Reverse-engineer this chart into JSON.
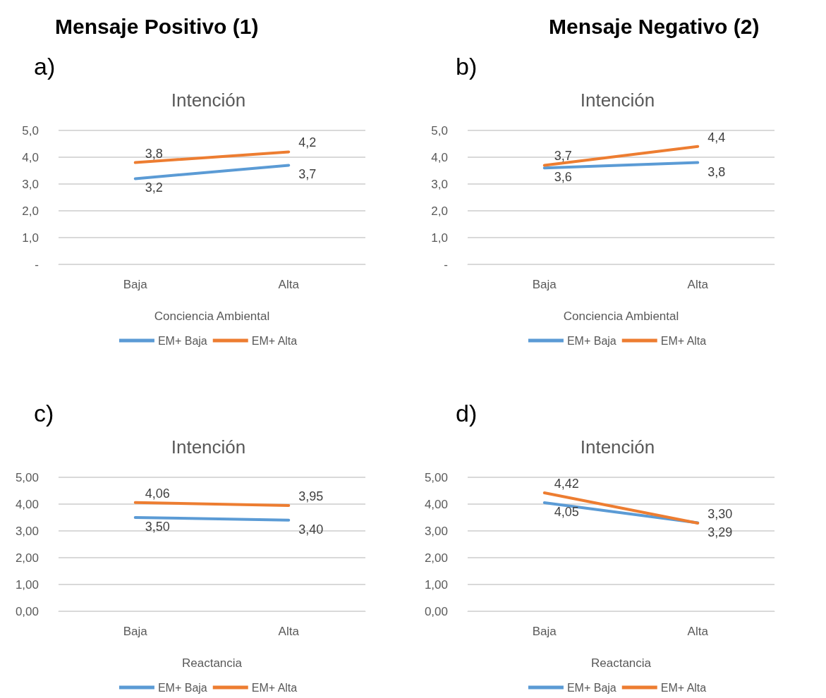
{
  "chart_data": [
    {
      "type": "line",
      "title": "Intención",
      "annotations": [
        "Mensaje Positivo (1)",
        "a)"
      ],
      "xlabel": "Conciencia Ambiental",
      "categories": [
        "Baja",
        "Alta"
      ],
      "ylim": [
        0,
        5
      ],
      "yticks": [
        {
          "value": 0,
          "label": "-"
        },
        {
          "value": 1,
          "label": "1,0"
        },
        {
          "value": 2,
          "label": "2,0"
        },
        {
          "value": 3,
          "label": "3,0"
        },
        {
          "value": 4,
          "label": "4,0"
        },
        {
          "value": 5,
          "label": "5,0"
        }
      ],
      "grid": "y",
      "legend": "bottom",
      "marker": "none",
      "line_style": "solid",
      "series": [
        {
          "name": "EM+ Baja",
          "color": "#5b9bd5",
          "values": [
            3.2,
            3.7
          ],
          "value_labels": [
            "3,2",
            "3,7"
          ]
        },
        {
          "name": "EM+ Alta",
          "color": "#ed7d31",
          "values": [
            3.8,
            4.2
          ],
          "value_labels": [
            "3,8",
            "4,2"
          ]
        }
      ]
    },
    {
      "type": "line",
      "title": "Intención",
      "annotations": [
        "Mensaje Negativo (2)",
        "b)"
      ],
      "xlabel": "Conciencia Ambiental",
      "categories": [
        "Baja",
        "Alta"
      ],
      "ylim": [
        0,
        5
      ],
      "yticks": [
        {
          "value": 0,
          "label": "-"
        },
        {
          "value": 1,
          "label": "1,0"
        },
        {
          "value": 2,
          "label": "2,0"
        },
        {
          "value": 3,
          "label": "3,0"
        },
        {
          "value": 4,
          "label": "4,0"
        },
        {
          "value": 5,
          "label": "5,0"
        }
      ],
      "grid": "y",
      "legend": "bottom",
      "marker": "none",
      "line_style": "solid",
      "series": [
        {
          "name": "EM+ Baja",
          "color": "#5b9bd5",
          "values": [
            3.6,
            3.8
          ],
          "value_labels": [
            "3,6",
            "3,8"
          ]
        },
        {
          "name": "EM+ Alta",
          "color": "#ed7d31",
          "values": [
            3.7,
            4.4
          ],
          "value_labels": [
            "3,7",
            "4,4"
          ]
        }
      ]
    },
    {
      "type": "line",
      "title": "Intención",
      "annotations": [
        "c)"
      ],
      "xlabel": "Reactancia",
      "categories": [
        "Baja",
        "Alta"
      ],
      "ylim": [
        0,
        5
      ],
      "yticks": [
        {
          "value": 0,
          "label": "0,00"
        },
        {
          "value": 1,
          "label": "1,00"
        },
        {
          "value": 2,
          "label": "2,00"
        },
        {
          "value": 3,
          "label": "3,00"
        },
        {
          "value": 4,
          "label": "4,00"
        },
        {
          "value": 5,
          "label": "5,00"
        }
      ],
      "grid": "y",
      "legend": "bottom",
      "marker": "none",
      "line_style": "solid",
      "series": [
        {
          "name": "EM+ Baja",
          "color": "#5b9bd5",
          "values": [
            3.5,
            3.4
          ],
          "value_labels": [
            "3,50",
            "3,40"
          ]
        },
        {
          "name": "EM+ Alta",
          "color": "#ed7d31",
          "values": [
            4.06,
            3.95
          ],
          "value_labels": [
            "4,06",
            "3,95"
          ]
        }
      ]
    },
    {
      "type": "line",
      "title": "Intención",
      "annotations": [
        "d)"
      ],
      "xlabel": "Reactancia",
      "categories": [
        "Baja",
        "Alta"
      ],
      "ylim": [
        0,
        5
      ],
      "yticks": [
        {
          "value": 0,
          "label": "0,00"
        },
        {
          "value": 1,
          "label": "1,00"
        },
        {
          "value": 2,
          "label": "2,00"
        },
        {
          "value": 3,
          "label": "3,00"
        },
        {
          "value": 4,
          "label": "4,00"
        },
        {
          "value": 5,
          "label": "5,00"
        }
      ],
      "grid": "y",
      "legend": "bottom",
      "marker": "none",
      "line_style": "solid",
      "series": [
        {
          "name": "EM+ Baja",
          "color": "#5b9bd5",
          "values": [
            4.05,
            3.3
          ],
          "value_labels": [
            "4,05",
            "3,30"
          ]
        },
        {
          "name": "EM+ Alta",
          "color": "#ed7d31",
          "values": [
            4.42,
            3.29
          ],
          "value_labels": [
            "4,42",
            "3,29"
          ]
        }
      ]
    }
  ]
}
